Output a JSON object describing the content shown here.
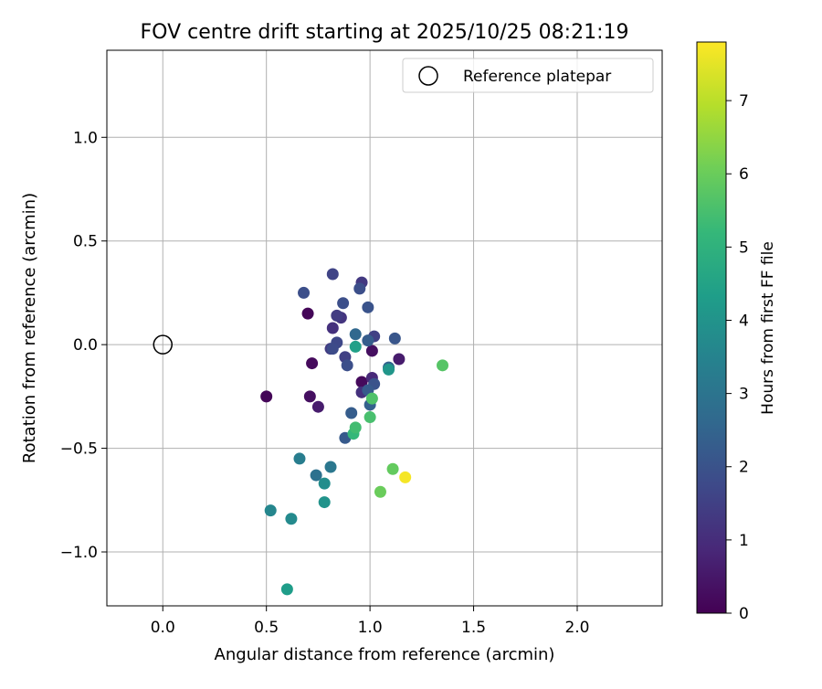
{
  "chart_data": {
    "type": "scatter",
    "title": "FOV centre drift starting at 2025/10/25 08:21:19",
    "xlabel": "Angular distance from reference (arcmin)",
    "ylabel": "Rotation from reference (arcmin)",
    "xlim": [
      -0.27,
      2.41
    ],
    "ylim": [
      -1.26,
      1.42
    ],
    "xticks": [
      0.0,
      0.5,
      1.0,
      1.5,
      2.0
    ],
    "xtick_labels": [
      "0.0",
      "0.5",
      "1.0",
      "1.5",
      "2.0"
    ],
    "yticks": [
      -1.0,
      -0.5,
      0.0,
      0.5,
      1.0
    ],
    "ytick_labels": [
      "−1.0",
      "−0.5",
      "0.0",
      "0.5",
      "1.0"
    ],
    "grid": true,
    "legend": {
      "position": "top-right",
      "label": "Reference platepar"
    },
    "reference": {
      "x": 0.0,
      "y": 0.0
    },
    "colorbar": {
      "label": "Hours from first FF file",
      "min": 0,
      "max": 7.8,
      "ticks": [
        0,
        1,
        2,
        3,
        4,
        5,
        6,
        7
      ],
      "tick_labels": [
        "0",
        "1",
        "2",
        "3",
        "4",
        "5",
        "6",
        "7"
      ],
      "colormap": "viridis",
      "stops": [
        "#440154",
        "#482878",
        "#3e4989",
        "#31688e",
        "#26828e",
        "#1f9e89",
        "#35b779",
        "#6ece58",
        "#b5de2b",
        "#fde725"
      ]
    },
    "points": [
      {
        "x": 0.5,
        "y": -0.25,
        "h": 0.1
      },
      {
        "x": 0.7,
        "y": 0.15,
        "h": 0.1
      },
      {
        "x": 0.72,
        "y": -0.09,
        "h": 0.2
      },
      {
        "x": 0.71,
        "y": -0.25,
        "h": 0.3
      },
      {
        "x": 0.75,
        "y": -0.3,
        "h": 0.6
      },
      {
        "x": 0.96,
        "y": -0.18,
        "h": 0.2
      },
      {
        "x": 1.01,
        "y": -0.03,
        "h": 0.3
      },
      {
        "x": 1.14,
        "y": -0.07,
        "h": 0.6
      },
      {
        "x": 1.01,
        "y": -0.16,
        "h": 0.9
      },
      {
        "x": 0.96,
        "y": -0.23,
        "h": 1.1
      },
      {
        "x": 0.82,
        "y": 0.08,
        "h": 1.1
      },
      {
        "x": 0.86,
        "y": 0.13,
        "h": 1.2
      },
      {
        "x": 0.96,
        "y": 0.3,
        "h": 1.3
      },
      {
        "x": 0.84,
        "y": 0.14,
        "h": 1.4
      },
      {
        "x": 0.81,
        "y": -0.02,
        "h": 1.4
      },
      {
        "x": 0.88,
        "y": -0.06,
        "h": 1.5
      },
      {
        "x": 1.02,
        "y": 0.04,
        "h": 1.5
      },
      {
        "x": 0.82,
        "y": 0.34,
        "h": 1.6
      },
      {
        "x": 0.84,
        "y": 0.01,
        "h": 1.7
      },
      {
        "x": 0.82,
        "y": -0.02,
        "h": 1.8
      },
      {
        "x": 0.89,
        "y": -0.1,
        "h": 1.9
      },
      {
        "x": 0.68,
        "y": 0.25,
        "h": 1.9
      },
      {
        "x": 0.87,
        "y": 0.2,
        "h": 1.9
      },
      {
        "x": 0.95,
        "y": 0.27,
        "h": 1.9
      },
      {
        "x": 0.99,
        "y": 0.18,
        "h": 2.0
      },
      {
        "x": 1.02,
        "y": -0.19,
        "h": 2.0
      },
      {
        "x": 1.12,
        "y": 0.03,
        "h": 2.1
      },
      {
        "x": 0.99,
        "y": -0.22,
        "h": 2.2
      },
      {
        "x": 0.88,
        "y": -0.45,
        "h": 2.2
      },
      {
        "x": 0.91,
        "y": -0.33,
        "h": 2.3
      },
      {
        "x": 0.99,
        "y": 0.02,
        "h": 2.3
      },
      {
        "x": 1.0,
        "y": -0.29,
        "h": 2.4
      },
      {
        "x": 1.09,
        "y": -0.11,
        "h": 2.5
      },
      {
        "x": 0.93,
        "y": 0.05,
        "h": 2.6
      },
      {
        "x": 0.74,
        "y": -0.63,
        "h": 2.9
      },
      {
        "x": 0.81,
        "y": -0.59,
        "h": 3.1
      },
      {
        "x": 0.66,
        "y": -0.55,
        "h": 3.3
      },
      {
        "x": 0.52,
        "y": -0.8,
        "h": 3.6
      },
      {
        "x": 0.62,
        "y": -0.84,
        "h": 3.7
      },
      {
        "x": 0.78,
        "y": -0.67,
        "h": 3.8
      },
      {
        "x": 0.78,
        "y": -0.76,
        "h": 4.0
      },
      {
        "x": 1.09,
        "y": -0.12,
        "h": 4.1
      },
      {
        "x": 0.6,
        "y": -1.18,
        "h": 4.3
      },
      {
        "x": 0.93,
        "y": -0.01,
        "h": 4.4
      },
      {
        "x": 0.92,
        "y": -0.43,
        "h": 5.2
      },
      {
        "x": 0.93,
        "y": -0.4,
        "h": 5.4
      },
      {
        "x": 1.0,
        "y": -0.35,
        "h": 5.5
      },
      {
        "x": 1.01,
        "y": -0.26,
        "h": 5.6
      },
      {
        "x": 1.35,
        "y": -0.1,
        "h": 5.7
      },
      {
        "x": 1.11,
        "y": -0.6,
        "h": 5.9
      },
      {
        "x": 1.05,
        "y": -0.71,
        "h": 6.0
      },
      {
        "x": 1.17,
        "y": -0.64,
        "h": 7.7
      }
    ]
  }
}
